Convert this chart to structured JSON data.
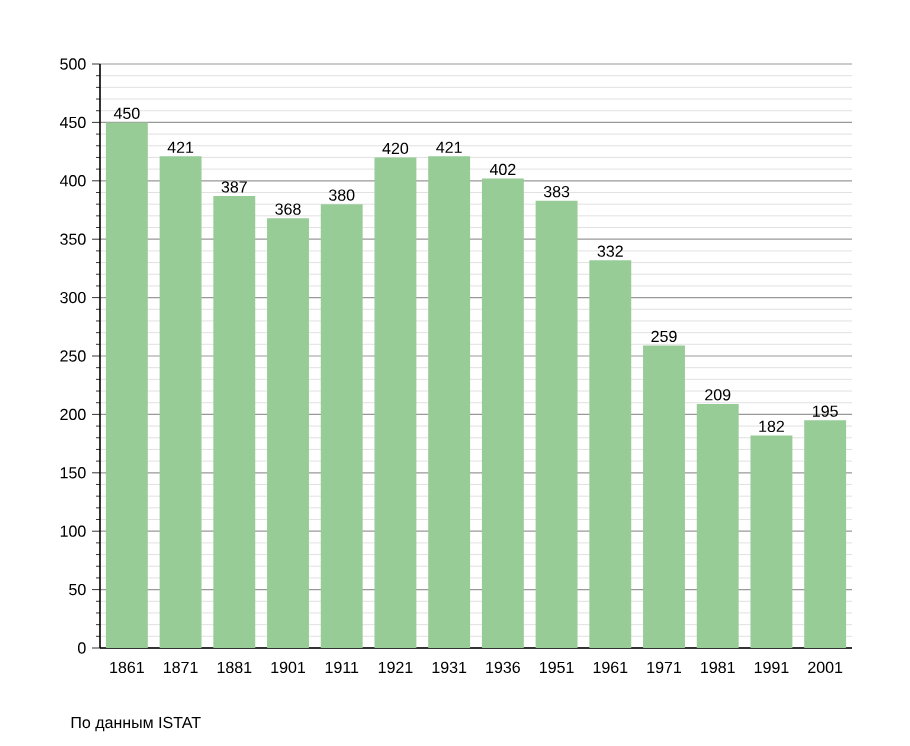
{
  "chart_data": {
    "type": "bar",
    "categories": [
      "1861",
      "1871",
      "1881",
      "1901",
      "1911",
      "1921",
      "1931",
      "1936",
      "1951",
      "1961",
      "1971",
      "1981",
      "1991",
      "2001"
    ],
    "values": [
      450,
      421,
      387,
      368,
      380,
      420,
      421,
      402,
      383,
      332,
      259,
      209,
      182,
      195
    ],
    "color": "#97cc97",
    "ylim": [
      0,
      500
    ],
    "yticks": [
      0,
      50,
      100,
      150,
      200,
      250,
      300,
      350,
      400,
      450,
      500
    ],
    "grid": "y",
    "data_labels": true,
    "annotations": [
      "По данным  ISTAT"
    ]
  }
}
